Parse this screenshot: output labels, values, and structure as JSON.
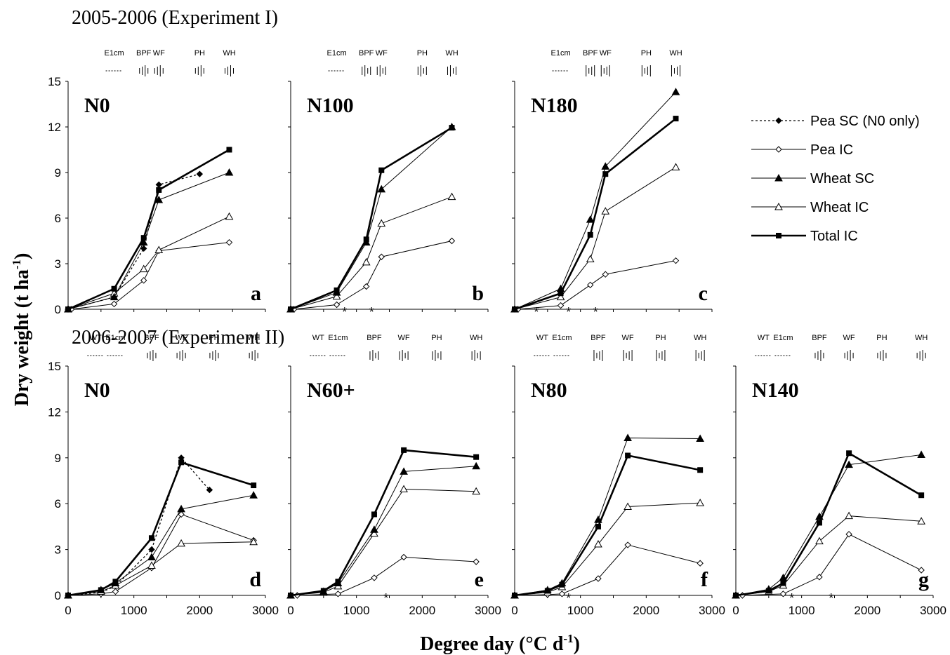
{
  "figure": {
    "experiment_titles": [
      "2005-2006 (Experiment I)",
      "2006-2007 (Experiment II)"
    ],
    "ylabel_main": "Dry weight (t ha",
    "ylabel_sup": "-1",
    "ylabel_end": ")",
    "xlabel_main": "Degree day (°C d",
    "xlabel_sup": "-1",
    "xlabel_end": ")",
    "legend": [
      {
        "label": "Pea SC (N0 only)",
        "style": "dotted",
        "marker": "diamond-filled"
      },
      {
        "label": "Pea IC",
        "style": "thin",
        "marker": "diamond-open"
      },
      {
        "label": "Wheat SC",
        "style": "thin",
        "marker": "triangle-filled"
      },
      {
        "label": "Wheat IC",
        "style": "thin",
        "marker": "triangle-open"
      },
      {
        "label": "Total IC",
        "style": "thick",
        "marker": "square-filled"
      }
    ],
    "colors": {
      "ink": "#000000",
      "background": "#ffffff"
    }
  },
  "chart_data": [
    {
      "type": "line",
      "panel": "a",
      "treatment": "N0",
      "row": 0,
      "col": 0,
      "xlim": [
        0,
        3000
      ],
      "ylim": [
        0,
        15
      ],
      "xticks": [],
      "yticks": [
        0,
        3,
        6,
        9,
        12,
        15
      ],
      "stages": [
        "E1cm",
        "BPF",
        "WF",
        "PH",
        "WH"
      ],
      "stars": [],
      "series": [
        {
          "name": "Pea SC (N0 only)",
          "points": [
            [
              0,
              0
            ],
            [
              700,
              0.8
            ],
            [
              1150,
              4.0
            ],
            [
              1380,
              8.2
            ],
            [
              2000,
              8.9
            ]
          ]
        },
        {
          "name": "Pea IC",
          "points": [
            [
              0,
              0
            ],
            [
              50,
              0
            ],
            [
              700,
              0.35
            ],
            [
              1150,
              1.9
            ],
            [
              1380,
              3.85
            ],
            [
              2450,
              4.4
            ]
          ]
        },
        {
          "name": "Wheat SC",
          "points": [
            [
              0,
              0
            ],
            [
              700,
              0.8
            ],
            [
              1150,
              4.4
            ],
            [
              1380,
              7.2
            ],
            [
              2450,
              9.0
            ]
          ]
        },
        {
          "name": "Wheat IC",
          "points": [
            [
              0,
              0
            ],
            [
              700,
              1.05
            ],
            [
              1150,
              2.65
            ],
            [
              1380,
              3.9
            ],
            [
              2450,
              6.1
            ]
          ]
        },
        {
          "name": "Total IC",
          "points": [
            [
              0,
              0
            ],
            [
              700,
              1.35
            ],
            [
              1150,
              4.7
            ],
            [
              1380,
              7.85
            ],
            [
              2450,
              10.5
            ]
          ]
        }
      ]
    },
    {
      "type": "line",
      "panel": "b",
      "treatment": "N100",
      "row": 0,
      "col": 1,
      "xlim": [
        0,
        3000
      ],
      "ylim": [
        0,
        15
      ],
      "xticks": [],
      "yticks": [],
      "stages": [
        "E1cm",
        "BPF",
        "WF",
        "PH",
        "WH"
      ],
      "stars": [
        820,
        1230
      ],
      "series": [
        {
          "name": "Pea IC",
          "points": [
            [
              0,
              0
            ],
            [
              50,
              0
            ],
            [
              700,
              0.3
            ],
            [
              1150,
              1.5
            ],
            [
              1380,
              3.45
            ],
            [
              2450,
              4.5
            ]
          ]
        },
        {
          "name": "Wheat SC",
          "points": [
            [
              0,
              0
            ],
            [
              700,
              1.1
            ],
            [
              1150,
              4.4
            ],
            [
              1380,
              7.9
            ],
            [
              2450,
              12.0
            ]
          ]
        },
        {
          "name": "Wheat IC",
          "points": [
            [
              0,
              0
            ],
            [
              700,
              0.85
            ],
            [
              1150,
              3.1
            ],
            [
              1380,
              5.65
            ],
            [
              2450,
              7.4
            ]
          ]
        },
        {
          "name": "Total IC",
          "points": [
            [
              0,
              0
            ],
            [
              700,
              1.25
            ],
            [
              1150,
              4.6
            ],
            [
              1380,
              9.15
            ],
            [
              2450,
              11.95
            ]
          ]
        }
      ]
    },
    {
      "type": "line",
      "panel": "c",
      "treatment": "N180",
      "row": 0,
      "col": 2,
      "xlim": [
        0,
        3000
      ],
      "ylim": [
        0,
        15
      ],
      "xticks": [],
      "yticks": [],
      "stages": [
        "E1cm",
        "BPF",
        "WF",
        "PH",
        "WH"
      ],
      "stars": [
        330,
        820,
        1230
      ],
      "series": [
        {
          "name": "Pea IC",
          "points": [
            [
              0,
              0
            ],
            [
              50,
              0
            ],
            [
              700,
              0.25
            ],
            [
              1150,
              1.6
            ],
            [
              1380,
              2.3
            ],
            [
              2450,
              3.2
            ]
          ]
        },
        {
          "name": "Wheat SC",
          "points": [
            [
              0,
              0
            ],
            [
              700,
              1.35
            ],
            [
              1150,
              5.9
            ],
            [
              1380,
              9.4
            ],
            [
              2450,
              14.3
            ]
          ]
        },
        {
          "name": "Wheat IC",
          "points": [
            [
              0,
              0
            ],
            [
              700,
              0.8
            ],
            [
              1150,
              3.3
            ],
            [
              1380,
              6.45
            ],
            [
              2450,
              9.35
            ]
          ]
        },
        {
          "name": "Total IC",
          "points": [
            [
              0,
              0
            ],
            [
              700,
              1.05
            ],
            [
              1150,
              4.9
            ],
            [
              1380,
              8.9
            ],
            [
              2450,
              12.55
            ]
          ]
        }
      ]
    },
    {
      "type": "line",
      "panel": "d",
      "treatment": "N0",
      "row": 1,
      "col": 0,
      "xlim": [
        0,
        3000
      ],
      "ylim": [
        0,
        15
      ],
      "xticks": [
        0,
        1000,
        2000,
        3000
      ],
      "yticks": [
        0,
        3,
        6,
        9,
        12,
        15
      ],
      "stages": [
        "WT",
        "E1cm",
        "BPF",
        "WF",
        "PH",
        "WH"
      ],
      "stars": [],
      "series": [
        {
          "name": "Pea SC (N0 only)",
          "points": [
            [
              0,
              0
            ],
            [
              500,
              0.2
            ],
            [
              720,
              0.6
            ],
            [
              1270,
              3.0
            ],
            [
              1720,
              9.0
            ],
            [
              2150,
              6.9
            ]
          ]
        },
        {
          "name": "Pea IC",
          "points": [
            [
              0,
              0
            ],
            [
              500,
              0.1
            ],
            [
              720,
              0.25
            ],
            [
              1270,
              1.8
            ],
            [
              1720,
              5.3
            ],
            [
              2820,
              3.6
            ]
          ]
        },
        {
          "name": "Wheat SC",
          "points": [
            [
              0,
              0
            ],
            [
              500,
              0.35
            ],
            [
              720,
              0.8
            ],
            [
              1270,
              2.5
            ],
            [
              1720,
              5.65
            ],
            [
              2820,
              6.55
            ]
          ]
        },
        {
          "name": "Wheat IC",
          "points": [
            [
              0,
              0
            ],
            [
              500,
              0.25
            ],
            [
              720,
              0.65
            ],
            [
              1270,
              1.95
            ],
            [
              1720,
              3.4
            ],
            [
              2820,
              3.5
            ]
          ]
        },
        {
          "name": "Total IC",
          "points": [
            [
              0,
              0
            ],
            [
              500,
              0.35
            ],
            [
              720,
              0.9
            ],
            [
              1270,
              3.75
            ],
            [
              1720,
              8.7
            ],
            [
              2820,
              7.2
            ]
          ]
        }
      ]
    },
    {
      "type": "line",
      "panel": "e",
      "treatment": "N60+",
      "row": 1,
      "col": 1,
      "xlim": [
        0,
        3000
      ],
      "ylim": [
        0,
        15
      ],
      "xticks": [
        0,
        1000,
        2000,
        3000
      ],
      "yticks": [],
      "stages": [
        "WT",
        "E1cm",
        "BPF",
        "WF",
        "PH",
        "WH"
      ],
      "stars": [
        1450
      ],
      "series": [
        {
          "name": "Pea IC",
          "points": [
            [
              0,
              0
            ],
            [
              100,
              0
            ],
            [
              720,
              0.1
            ],
            [
              1270,
              1.15
            ],
            [
              1720,
              2.5
            ],
            [
              2820,
              2.2
            ]
          ]
        },
        {
          "name": "Wheat SC",
          "points": [
            [
              0,
              0
            ],
            [
              500,
              0.25
            ],
            [
              720,
              0.8
            ],
            [
              1270,
              4.3
            ],
            [
              1720,
              8.1
            ],
            [
              2820,
              8.45
            ]
          ]
        },
        {
          "name": "Wheat IC",
          "points": [
            [
              0,
              0
            ],
            [
              500,
              0.2
            ],
            [
              720,
              0.6
            ],
            [
              1270,
              4.05
            ],
            [
              1720,
              6.95
            ],
            [
              2820,
              6.8
            ]
          ]
        },
        {
          "name": "Total IC",
          "points": [
            [
              0,
              0
            ],
            [
              500,
              0.3
            ],
            [
              720,
              0.9
            ],
            [
              1270,
              5.3
            ],
            [
              1720,
              9.5
            ],
            [
              2820,
              9.05
            ]
          ]
        }
      ]
    },
    {
      "type": "line",
      "panel": "f",
      "treatment": "N80",
      "row": 1,
      "col": 2,
      "xlim": [
        0,
        3000
      ],
      "ylim": [
        0,
        15
      ],
      "xticks": [
        0,
        1000,
        2000,
        3000
      ],
      "yticks": [],
      "stages": [
        "WT",
        "E1cm",
        "BPF",
        "WF",
        "PH",
        "WH"
      ],
      "stars": [
        820
      ],
      "series": [
        {
          "name": "Pea IC",
          "points": [
            [
              0,
              0
            ],
            [
              500,
              0.05
            ],
            [
              720,
              0.1
            ],
            [
              1270,
              1.1
            ],
            [
              1720,
              3.3
            ],
            [
              2820,
              2.1
            ]
          ]
        },
        {
          "name": "Wheat SC",
          "points": [
            [
              0,
              0
            ],
            [
              500,
              0.35
            ],
            [
              720,
              0.8
            ],
            [
              1270,
              4.95
            ],
            [
              1720,
              10.3
            ],
            [
              2820,
              10.25
            ]
          ]
        },
        {
          "name": "Wheat IC",
          "points": [
            [
              0,
              0
            ],
            [
              500,
              0.2
            ],
            [
              720,
              0.55
            ],
            [
              1270,
              3.35
            ],
            [
              1720,
              5.8
            ],
            [
              2820,
              6.05
            ]
          ]
        },
        {
          "name": "Total IC",
          "points": [
            [
              0,
              0
            ],
            [
              500,
              0.3
            ],
            [
              720,
              0.7
            ],
            [
              1270,
              4.5
            ],
            [
              1720,
              9.15
            ],
            [
              2820,
              8.2
            ]
          ]
        }
      ]
    },
    {
      "type": "line",
      "panel": "g",
      "treatment": "N140",
      "row": 1,
      "col": 3,
      "xlim": [
        0,
        3000
      ],
      "ylim": [
        0,
        15
      ],
      "xticks": [
        0,
        1000,
        2000,
        3000
      ],
      "yticks": [],
      "stages": [
        "WT",
        "E1cm",
        "BPF",
        "WF",
        "PH",
        "WH"
      ],
      "stars": [
        850,
        1450
      ],
      "series": [
        {
          "name": "Pea IC",
          "points": [
            [
              0,
              0
            ],
            [
              100,
              0
            ],
            [
              720,
              0.1
            ],
            [
              1270,
              1.2
            ],
            [
              1720,
              4.0
            ],
            [
              2820,
              1.65
            ]
          ]
        },
        {
          "name": "Wheat SC",
          "points": [
            [
              0,
              0
            ],
            [
              500,
              0.4
            ],
            [
              720,
              1.15
            ],
            [
              1270,
              5.15
            ],
            [
              1720,
              8.55
            ],
            [
              2820,
              9.2
            ]
          ]
        },
        {
          "name": "Wheat IC",
          "points": [
            [
              0,
              0
            ],
            [
              500,
              0.25
            ],
            [
              720,
              0.65
            ],
            [
              1270,
              3.55
            ],
            [
              1720,
              5.2
            ],
            [
              2820,
              4.85
            ]
          ]
        },
        {
          "name": "Total IC",
          "points": [
            [
              0,
              0
            ],
            [
              500,
              0.3
            ],
            [
              720,
              0.8
            ],
            [
              1270,
              4.75
            ],
            [
              1720,
              9.3
            ],
            [
              2820,
              6.55
            ]
          ]
        }
      ]
    }
  ]
}
